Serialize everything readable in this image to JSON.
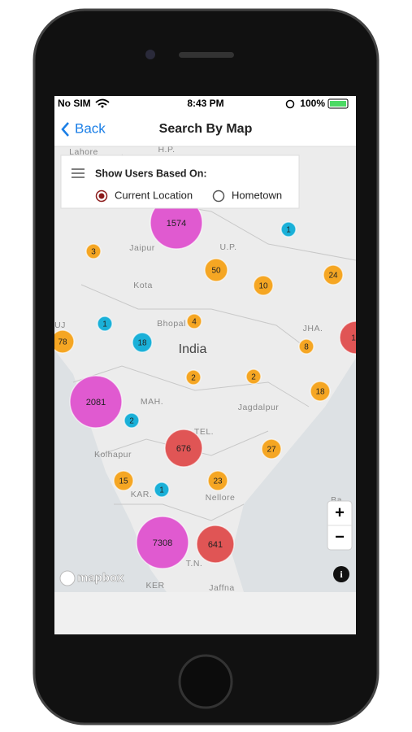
{
  "status_bar": {
    "carrier": "No SIM",
    "time": "8:43 PM",
    "battery": "100%"
  },
  "nav": {
    "back": "Back",
    "title": "Search By Map"
  },
  "filter": {
    "heading": "Show Users Based On:",
    "options": [
      "Current Location",
      "Hometown"
    ]
  },
  "map": {
    "places": [
      "Lahore",
      "H.P.",
      "Jaipur",
      "U.P.",
      "Kota",
      "Bhopal",
      "India",
      "UJ",
      "JHA.",
      "MAH.",
      "Jagdalpur",
      "TEL.",
      "Kolhapur",
      "KAR.",
      "Nellore",
      "T.N.",
      "KER",
      "Jaffna",
      "Ba"
    ],
    "clusters": [
      "1574",
      "3",
      "1",
      "50",
      "10",
      "24",
      "1",
      "18",
      "4",
      "78",
      "1",
      "8",
      "2",
      "2",
      "2081",
      "2",
      "18",
      "676",
      "27",
      "15",
      "23",
      "1",
      "7308",
      "641"
    ],
    "attribution": "mapbox"
  },
  "zoom": {
    "in": "+",
    "out": "−",
    "info": "i"
  }
}
